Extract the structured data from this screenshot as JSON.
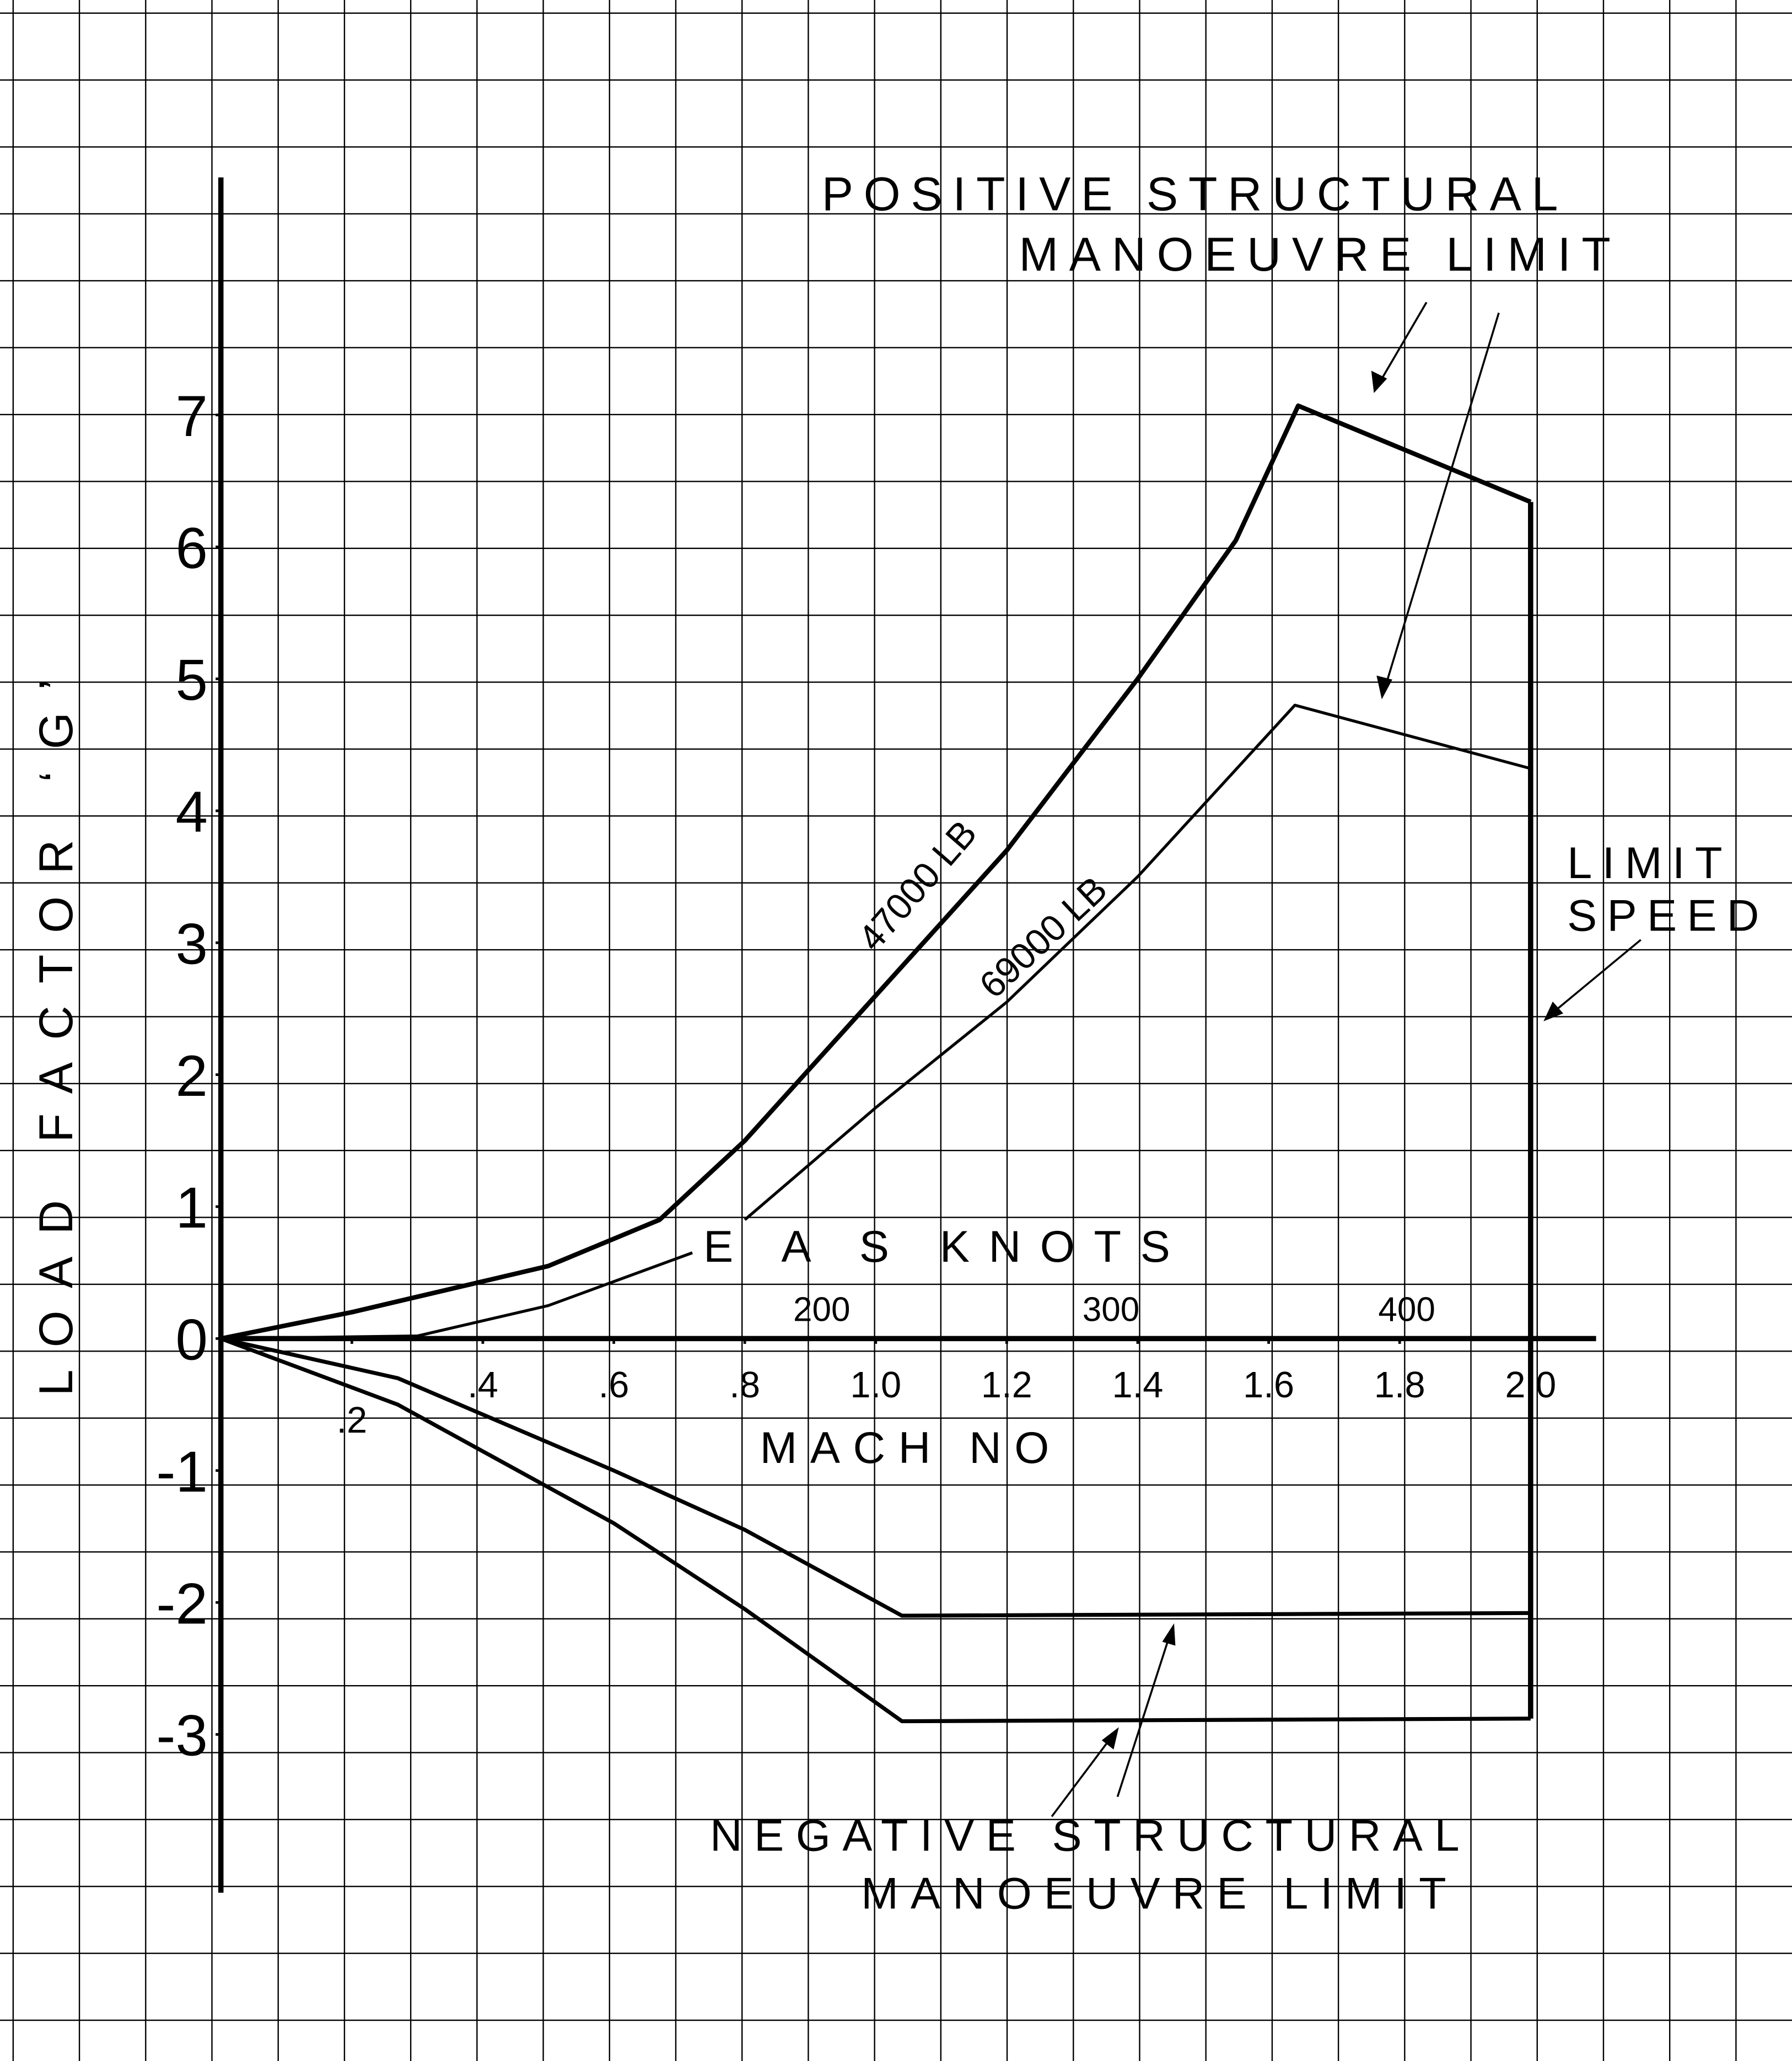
{
  "chart_data": {
    "type": "line",
    "x_label": "MACH NO",
    "y_label": "LOAD FACTOR ‘G’",
    "xlim": [
      0,
      2.1
    ],
    "ylim": [
      -4.2,
      8.8
    ],
    "xticks": [
      {
        "value": 0.2,
        "label": ".2"
      },
      {
        "value": 0.4,
        "label": ".4"
      },
      {
        "value": 0.6,
        "label": ".6"
      },
      {
        "value": 0.8,
        "label": ".8"
      },
      {
        "value": 1,
        "label": "1.0"
      },
      1.2,
      1.4,
      1.6,
      1.8,
      {
        "value": 2,
        "label": "2.0"
      }
    ],
    "yticks": [
      -3,
      -2,
      -1,
      0,
      1,
      2,
      3,
      4,
      5,
      6,
      7
    ],
    "grid": true,
    "series": [
      {
        "name": "47000 LB",
        "color": "#000000",
        "x": [
          0,
          0.2,
          0.5,
          0.67,
          0.8,
          1.0,
          1.2,
          1.4,
          1.55,
          1.645,
          2.0
        ],
        "values": [
          0,
          0.2,
          0.55,
          0.9,
          1.5,
          2.6,
          3.7,
          5.0,
          6.05,
          7.07,
          6.34
        ]
      },
      {
        "name": "69000 LB",
        "color": "#000000",
        "x": [
          0,
          0.3,
          0.5,
          0.72,
          0.76,
          0.8,
          1.0,
          1.2,
          1.4,
          1.64,
          2.0
        ],
        "values": [
          0,
          0.02,
          0.25,
          0.65,
          null,
          0.9,
          1.75,
          2.55,
          3.5,
          4.8,
          4.32
        ]
      },
      {
        "color": "#000000",
        "x": [
          0,
          0.27,
          0.6,
          0.8,
          1.04,
          2.0
        ],
        "values": [
          0,
          -0.3,
          -1.0,
          -1.45,
          -2.1,
          -2.08
        ]
      },
      {
        "color": "#000000",
        "x": [
          0,
          0.27,
          0.6,
          0.8,
          1.04,
          2.0
        ],
        "values": [
          0,
          -0.5,
          -1.4,
          -2.05,
          -2.9,
          -2.88
        ]
      },
      {
        "color": "#000000",
        "x": [
          2.0,
          2.0
        ],
        "values": [
          6.34,
          -2.88
        ]
      }
    ],
    "eas_axis": {
      "label": "E A S   KNOTS",
      "ticks": [
        200,
        300,
        400
      ]
    },
    "annotations": [
      "POSITIVE STRUCTURAL",
      "MANOEUVRE LIMIT",
      "LIMIT",
      "SPEED",
      "NEGATIVE STRUCTURAL",
      "MANOEUVRE LIMIT"
    ]
  }
}
